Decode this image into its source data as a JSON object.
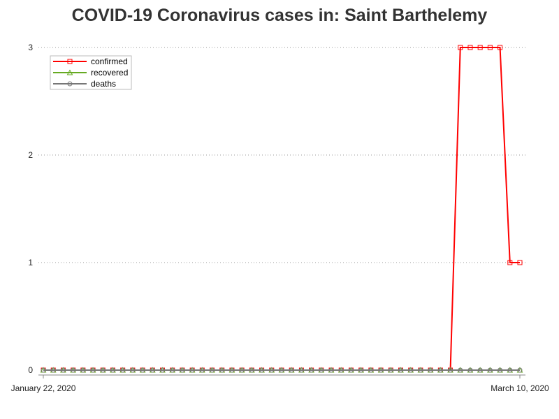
{
  "chart_data": {
    "type": "line",
    "title": "COVID-19 Coronavirus cases in: Saint Barthelemy",
    "xlabel": "",
    "ylabel": "",
    "x_start": "2020-01-22",
    "x_end": "2020-03-10",
    "x_tick_labels": [
      "January 22, 2020",
      "March 10, 2020"
    ],
    "y_ticks": [
      0,
      1,
      2,
      3
    ],
    "ylim": [
      0,
      3
    ],
    "grid": "horizontal dotted",
    "legend_position": "top-left",
    "x": [
      "2020-01-22",
      "2020-01-23",
      "2020-01-24",
      "2020-01-25",
      "2020-01-26",
      "2020-01-27",
      "2020-01-28",
      "2020-01-29",
      "2020-01-30",
      "2020-01-31",
      "2020-02-01",
      "2020-02-02",
      "2020-02-03",
      "2020-02-04",
      "2020-02-05",
      "2020-02-06",
      "2020-02-07",
      "2020-02-08",
      "2020-02-09",
      "2020-02-10",
      "2020-02-11",
      "2020-02-12",
      "2020-02-13",
      "2020-02-14",
      "2020-02-15",
      "2020-02-16",
      "2020-02-17",
      "2020-02-18",
      "2020-02-19",
      "2020-02-20",
      "2020-02-21",
      "2020-02-22",
      "2020-02-23",
      "2020-02-24",
      "2020-02-25",
      "2020-02-26",
      "2020-02-27",
      "2020-02-28",
      "2020-02-29",
      "2020-03-01",
      "2020-03-02",
      "2020-03-03",
      "2020-03-04",
      "2020-03-05",
      "2020-03-06",
      "2020-03-07",
      "2020-03-08",
      "2020-03-09",
      "2020-03-10"
    ],
    "series": [
      {
        "name": "confirmed",
        "color": "#ff0000",
        "marker": "square",
        "values": [
          0,
          0,
          0,
          0,
          0,
          0,
          0,
          0,
          0,
          0,
          0,
          0,
          0,
          0,
          0,
          0,
          0,
          0,
          0,
          0,
          0,
          0,
          0,
          0,
          0,
          0,
          0,
          0,
          0,
          0,
          0,
          0,
          0,
          0,
          0,
          0,
          0,
          0,
          0,
          0,
          0,
          0,
          3,
          3,
          3,
          3,
          3,
          1,
          1
        ]
      },
      {
        "name": "recovered",
        "color": "#66aa22",
        "marker": "triangle",
        "values": [
          0,
          0,
          0,
          0,
          0,
          0,
          0,
          0,
          0,
          0,
          0,
          0,
          0,
          0,
          0,
          0,
          0,
          0,
          0,
          0,
          0,
          0,
          0,
          0,
          0,
          0,
          0,
          0,
          0,
          0,
          0,
          0,
          0,
          0,
          0,
          0,
          0,
          0,
          0,
          0,
          0,
          0,
          0,
          0,
          0,
          0,
          0,
          0,
          0
        ]
      },
      {
        "name": "deaths",
        "color": "#777777",
        "marker": "circle",
        "values": [
          0,
          0,
          0,
          0,
          0,
          0,
          0,
          0,
          0,
          0,
          0,
          0,
          0,
          0,
          0,
          0,
          0,
          0,
          0,
          0,
          0,
          0,
          0,
          0,
          0,
          0,
          0,
          0,
          0,
          0,
          0,
          0,
          0,
          0,
          0,
          0,
          0,
          0,
          0,
          0,
          0,
          0,
          0,
          0,
          0,
          0,
          0,
          0,
          0
        ]
      }
    ]
  }
}
